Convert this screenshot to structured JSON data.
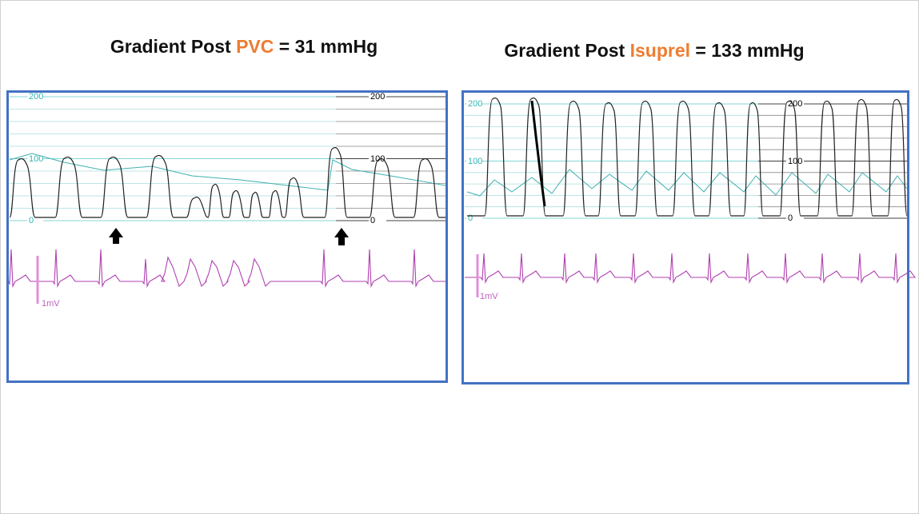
{
  "panels": [
    {
      "title": {
        "prefix": "Gradient Post",
        "highlight": "PVC",
        "suffix": "= 31 mmHg"
      },
      "scale_left": [
        "200",
        "100",
        "0"
      ],
      "scale_right": [
        "200",
        "100",
        "0"
      ],
      "ecg_label": "1mV"
    },
    {
      "title": {
        "prefix": "Gradient Post",
        "highlight": "Isuprel",
        "suffix": "= 133 mmHg"
      },
      "scale_left": [
        "200",
        "100",
        "0"
      ],
      "scale_right": [
        "200",
        "100",
        "0"
      ],
      "ecg_label": "1mV"
    }
  ]
}
